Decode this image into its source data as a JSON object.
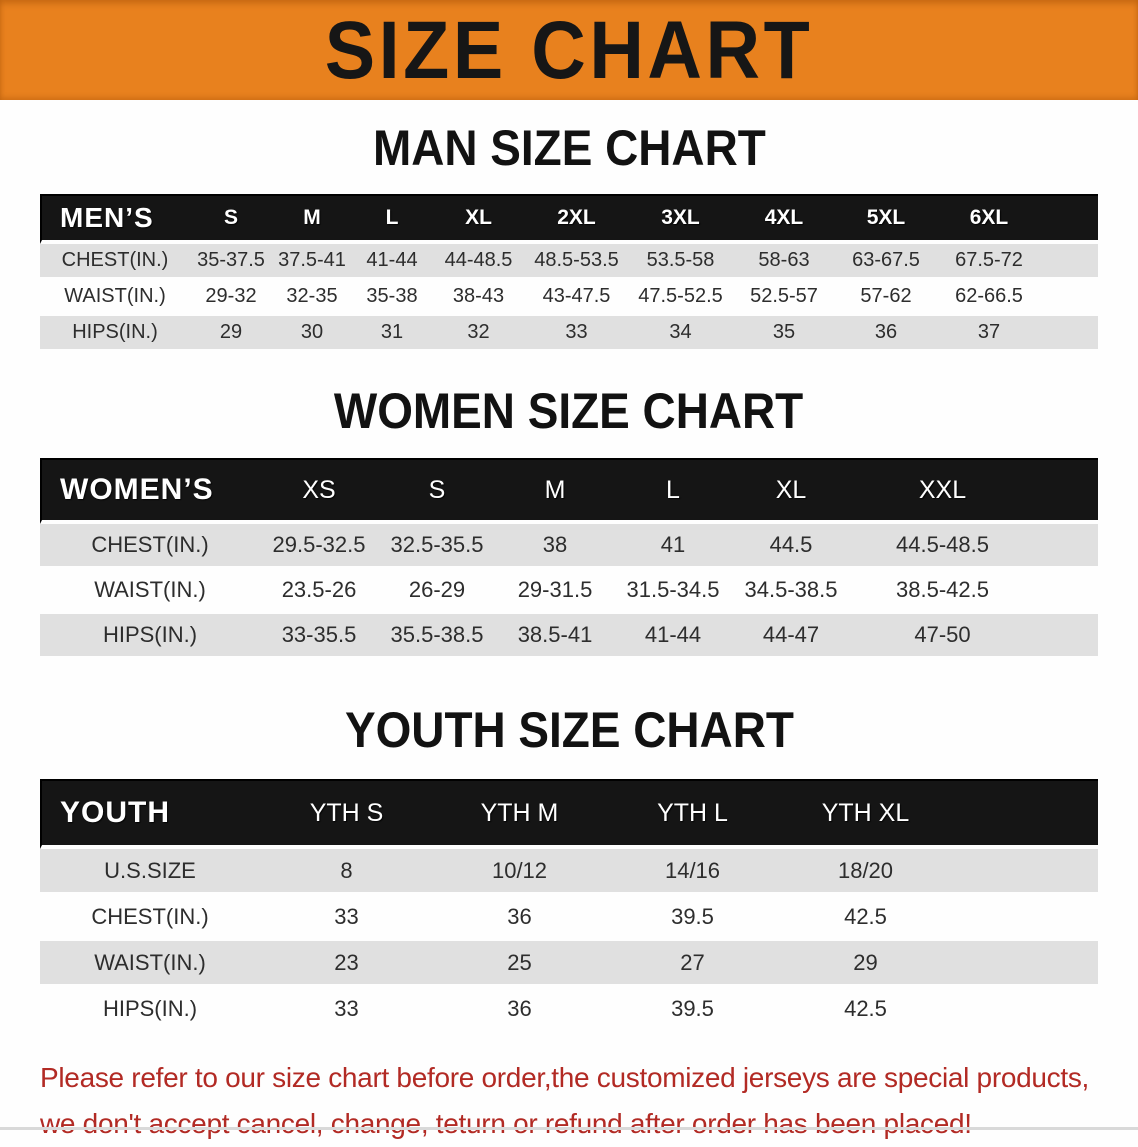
{
  "banner": {
    "title": "SIZE CHART"
  },
  "colors": {
    "banner_bg": "#E8811E",
    "header_bar": "#151515",
    "row_stripe": "#E0E0E0",
    "footer_text": "#B22A24"
  },
  "chart_data": [
    {
      "type": "table",
      "id": "men",
      "title": "MAN SIZE CHART",
      "header_label": "MEN’S",
      "columns": [
        "S",
        "M",
        "L",
        "XL",
        "2XL",
        "3XL",
        "4XL",
        "5XL",
        "6XL"
      ],
      "rows": [
        {
          "label": "CHEST(IN.)",
          "values": [
            "35-37.5",
            "37.5-41",
            "41-44",
            "44-48.5",
            "48.5-53.5",
            "53.5-58",
            "58-63",
            "63-67.5",
            "67.5-72"
          ]
        },
        {
          "label": "WAIST(IN.)",
          "values": [
            "29-32",
            "32-35",
            "35-38",
            "38-43",
            "43-47.5",
            "47.5-52.5",
            "52.5-57",
            "57-62",
            "62-66.5"
          ]
        },
        {
          "label": "HIPS(IN.)",
          "values": [
            "29",
            "30",
            "31",
            "32",
            "33",
            "34",
            "35",
            "36",
            "37"
          ]
        }
      ]
    },
    {
      "type": "table",
      "id": "women",
      "title": "WOMEN SIZE CHART",
      "header_label": "WOMEN’S",
      "columns": [
        "XS",
        "S",
        "M",
        "L",
        "XL",
        "XXL"
      ],
      "rows": [
        {
          "label": "CHEST(IN.)",
          "values": [
            "29.5-32.5",
            "32.5-35.5",
            "38",
            "41",
            "44.5",
            "44.5-48.5"
          ]
        },
        {
          "label": "WAIST(IN.)",
          "values": [
            "23.5-26",
            "26-29",
            "29-31.5",
            "31.5-34.5",
            "34.5-38.5",
            "38.5-42.5"
          ]
        },
        {
          "label": "HIPS(IN.)",
          "values": [
            "33-35.5",
            "35.5-38.5",
            "38.5-41",
            "41-44",
            "44-47",
            "47-50"
          ]
        }
      ]
    },
    {
      "type": "table",
      "id": "youth",
      "title": "YOUTH SIZE CHART",
      "header_label": "YOUTH",
      "columns": [
        "YTH S",
        "YTH M",
        "YTH L",
        "YTH XL"
      ],
      "rows": [
        {
          "label": "U.S.SIZE",
          "values": [
            "8",
            "10/12",
            "14/16",
            "18/20"
          ]
        },
        {
          "label": "CHEST(IN.)",
          "values": [
            "33",
            "36",
            "39.5",
            "42.5"
          ]
        },
        {
          "label": "WAIST(IN.)",
          "values": [
            "23",
            "25",
            "27",
            "29"
          ]
        },
        {
          "label": "HIPS(IN.)",
          "values": [
            "33",
            "36",
            "39.5",
            "42.5"
          ]
        }
      ]
    }
  ],
  "footer": {
    "line1": "Please refer to our size chart before order,the customized jerseys are special products,",
    "line2": "we don't accept cancel, change, teturn or refund after order has been placed!"
  }
}
